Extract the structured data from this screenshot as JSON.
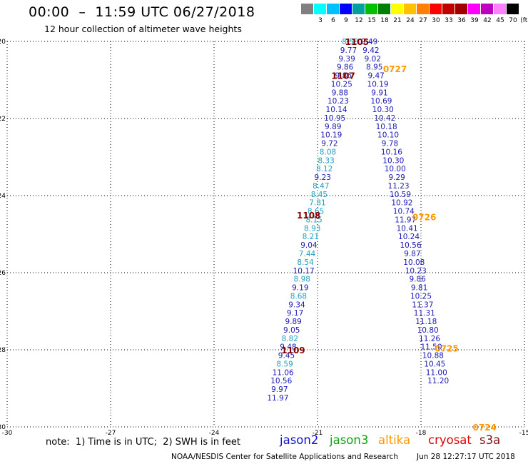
{
  "title": "00:00  –  11:59 UTC 06/27/2018",
  "subtitle": "12 hour collection of altimeter wave heights",
  "legend": {
    "unit_label": "(ft)",
    "bins": [
      {
        "label": "",
        "color": "#808080"
      },
      {
        "label": "3",
        "color": "#00ffff"
      },
      {
        "label": "6",
        "color": "#00c0ff"
      },
      {
        "label": "9",
        "color": "#0000ff"
      },
      {
        "label": "12",
        "color": "#00a0a0"
      },
      {
        "label": "15",
        "color": "#00c000"
      },
      {
        "label": "18",
        "color": "#008000"
      },
      {
        "label": "21",
        "color": "#ffff00"
      },
      {
        "label": "24",
        "color": "#ffc000"
      },
      {
        "label": "27",
        "color": "#ff8000"
      },
      {
        "label": "30",
        "color": "#ff0000"
      },
      {
        "label": "33",
        "color": "#c00000"
      },
      {
        "label": "36",
        "color": "#a00000"
      },
      {
        "label": "39",
        "color": "#ff00ff"
      },
      {
        "label": "42",
        "color": "#c000c0"
      },
      {
        "label": "45",
        "color": "#ff80ff"
      },
      {
        "label": "70",
        "color": "#000000"
      }
    ]
  },
  "note": "note:  1) Time is in UTC;  2) SWH is in feet",
  "satellites": [
    {
      "name": "jason2",
      "color": "#1010d0"
    },
    {
      "name": "jason3",
      "color": "#10a010"
    },
    {
      "name": "altika",
      "color": "#ff9900"
    },
    {
      "name": "cryosat",
      "color": "#e00000"
    },
    {
      "name": "s3a",
      "color": "#801010"
    }
  ],
  "footer": "NOAA/NESDIS Center for Satellite Applications and Research",
  "footer_date": "Jun 28 12:27:17 UTC 2018",
  "chart_data": {
    "type": "scatter",
    "title": "00:00 – 11:59 UTC 06/27/2018",
    "xlim": [
      -30,
      -15
    ],
    "ylim": [
      -30,
      -20
    ],
    "x_ticks": [
      -30,
      -27,
      -24,
      -21,
      -18,
      -15
    ],
    "y_ticks": [
      -20,
      -22,
      -24,
      -26,
      -28,
      -30
    ],
    "grid": true,
    "tracks": [
      {
        "satellite": "jason2",
        "color": "#1a1ab4",
        "points": [
          {
            "x": -20.05,
            "y": -20.0,
            "v": "8.58",
            "c": "#20a0c0"
          },
          {
            "x": -20.1,
            "y": -20.22,
            "v": "9.77"
          },
          {
            "x": -20.15,
            "y": -20.44,
            "v": "9.39"
          },
          {
            "x": -20.2,
            "y": -20.66,
            "v": "9.86"
          },
          {
            "x": -20.25,
            "y": -20.88,
            "v": "9.86"
          },
          {
            "x": -20.3,
            "y": -21.1,
            "v": "10.25"
          },
          {
            "x": -20.35,
            "y": -21.32,
            "v": "9.88"
          },
          {
            "x": -20.4,
            "y": -21.54,
            "v": "10.23"
          },
          {
            "x": -20.45,
            "y": -21.76,
            "v": "10.14"
          },
          {
            "x": -20.5,
            "y": -21.98,
            "v": "10.95"
          },
          {
            "x": -20.55,
            "y": -22.2,
            "v": "9.89"
          },
          {
            "x": -20.6,
            "y": -22.42,
            "v": "10.19"
          },
          {
            "x": -20.65,
            "y": -22.64,
            "v": "9.72"
          },
          {
            "x": -20.7,
            "y": -22.86,
            "v": "8.08",
            "c": "#20a0c0"
          },
          {
            "x": -20.75,
            "y": -23.08,
            "v": "8.33",
            "c": "#20a0c0"
          },
          {
            "x": -20.8,
            "y": -23.3,
            "v": "8.12",
            "c": "#20a0c0"
          },
          {
            "x": -20.85,
            "y": -23.52,
            "v": "9.23"
          },
          {
            "x": -20.9,
            "y": -23.74,
            "v": "8.47",
            "c": "#20a0c0"
          },
          {
            "x": -20.95,
            "y": -23.96,
            "v": "8.45",
            "c": "#20a0c0"
          },
          {
            "x": -21.0,
            "y": -24.18,
            "v": "7.81",
            "c": "#20a0c0"
          },
          {
            "x": -21.05,
            "y": -24.4,
            "v": "8.65",
            "c": "#20a0c0"
          },
          {
            "x": -21.1,
            "y": -24.62,
            "v": "8.15",
            "c": "#20a0c0"
          },
          {
            "x": -21.15,
            "y": -24.84,
            "v": "8.93",
            "c": "#20a0c0"
          },
          {
            "x": -21.2,
            "y": -25.06,
            "v": "8.21",
            "c": "#20a0c0"
          },
          {
            "x": -21.25,
            "y": -25.28,
            "v": "9.04"
          },
          {
            "x": -21.3,
            "y": -25.5,
            "v": "7.44",
            "c": "#20a0c0"
          },
          {
            "x": -21.35,
            "y": -25.72,
            "v": "8.54",
            "c": "#20a0c0"
          },
          {
            "x": -21.4,
            "y": -25.94,
            "v": "10.17"
          },
          {
            "x": -21.45,
            "y": -26.16,
            "v": "8.98",
            "c": "#20a0c0"
          },
          {
            "x": -21.5,
            "y": -26.38,
            "v": "9.19"
          },
          {
            "x": -21.55,
            "y": -26.6,
            "v": "8.68",
            "c": "#20a0c0"
          },
          {
            "x": -21.6,
            "y": -26.82,
            "v": "9.34"
          },
          {
            "x": -21.65,
            "y": -27.04,
            "v": "9.17"
          },
          {
            "x": -21.7,
            "y": -27.26,
            "v": "9.89"
          },
          {
            "x": -21.75,
            "y": -27.48,
            "v": "9.05"
          },
          {
            "x": -21.8,
            "y": -27.7,
            "v": "8.82",
            "c": "#20a0c0"
          },
          {
            "x": -21.85,
            "y": -27.92,
            "v": "9.48"
          },
          {
            "x": -21.9,
            "y": -28.14,
            "v": "9.45"
          },
          {
            "x": -21.95,
            "y": -28.36,
            "v": "8.59",
            "c": "#20a0c0"
          },
          {
            "x": -22.0,
            "y": -28.58,
            "v": "11.06"
          },
          {
            "x": -22.05,
            "y": -28.8,
            "v": "10.56"
          },
          {
            "x": -22.1,
            "y": -29.02,
            "v": "9.97"
          },
          {
            "x": -22.15,
            "y": -29.24,
            "v": "11.97"
          }
        ]
      },
      {
        "satellite": "jason2",
        "color": "#1a1ab4",
        "points": [
          {
            "x": -19.5,
            "y": -20.0,
            "v": "9.49"
          },
          {
            "x": -19.45,
            "y": -20.22,
            "v": "9.42"
          },
          {
            "x": -19.4,
            "y": -20.44,
            "v": "9.02"
          },
          {
            "x": -19.35,
            "y": -20.66,
            "v": "8.95"
          },
          {
            "x": -19.3,
            "y": -20.88,
            "v": "9.47"
          },
          {
            "x": -19.25,
            "y": -21.1,
            "v": "10.19"
          },
          {
            "x": -19.2,
            "y": -21.32,
            "v": "9.91"
          },
          {
            "x": -19.15,
            "y": -21.54,
            "v": "10.69"
          },
          {
            "x": -19.1,
            "y": -21.76,
            "v": "10.30"
          },
          {
            "x": -19.05,
            "y": -21.98,
            "v": "10.42"
          },
          {
            "x": -19.0,
            "y": -22.2,
            "v": "10.18"
          },
          {
            "x": -18.95,
            "y": -22.42,
            "v": "10.10"
          },
          {
            "x": -18.9,
            "y": -22.64,
            "v": "9.78"
          },
          {
            "x": -18.85,
            "y": -22.86,
            "v": "10.16"
          },
          {
            "x": -18.8,
            "y": -23.08,
            "v": "10.30"
          },
          {
            "x": -18.75,
            "y": -23.3,
            "v": "10.00"
          },
          {
            "x": -18.7,
            "y": -23.52,
            "v": "9.29"
          },
          {
            "x": -18.65,
            "y": -23.74,
            "v": "11.23"
          },
          {
            "x": -18.6,
            "y": -23.96,
            "v": "10.59"
          },
          {
            "x": -18.55,
            "y": -24.18,
            "v": "10.92"
          },
          {
            "x": -18.5,
            "y": -24.4,
            "v": "10.74"
          },
          {
            "x": -18.45,
            "y": -24.62,
            "v": "11.97"
          },
          {
            "x": -18.4,
            "y": -24.84,
            "v": "10.41"
          },
          {
            "x": -18.35,
            "y": -25.06,
            "v": "10.24"
          },
          {
            "x": -18.3,
            "y": -25.28,
            "v": "10.56"
          },
          {
            "x": -18.25,
            "y": -25.5,
            "v": "9.87"
          },
          {
            "x": -18.2,
            "y": -25.72,
            "v": "10.08"
          },
          {
            "x": -18.15,
            "y": -25.94,
            "v": "10.23"
          },
          {
            "x": -18.1,
            "y": -26.16,
            "v": "9.86"
          },
          {
            "x": -18.05,
            "y": -26.38,
            "v": "9.81"
          },
          {
            "x": -18.0,
            "y": -26.6,
            "v": "10.25"
          },
          {
            "x": -17.95,
            "y": -26.82,
            "v": "11.37"
          },
          {
            "x": -17.9,
            "y": -27.04,
            "v": "11.31"
          },
          {
            "x": -17.85,
            "y": -27.26,
            "v": "11.18"
          },
          {
            "x": -17.8,
            "y": -27.48,
            "v": "10.80"
          },
          {
            "x": -17.75,
            "y": -27.7,
            "v": "11.26"
          },
          {
            "x": -17.7,
            "y": -27.92,
            "v": "11.50"
          },
          {
            "x": -17.65,
            "y": -28.14,
            "v": "10.88"
          },
          {
            "x": -17.6,
            "y": -28.36,
            "v": "10.45"
          },
          {
            "x": -17.55,
            "y": -28.58,
            "v": "11.00"
          },
          {
            "x": -17.5,
            "y": -28.8,
            "v": "11.20"
          }
        ]
      }
    ],
    "time_labels": [
      {
        "text": "1105",
        "x": -20.2,
        "y": -20.0,
        "color": "#800000"
      },
      {
        "text": "1107",
        "x": -20.6,
        "y": -20.88,
        "color": "#800000"
      },
      {
        "text": "0727",
        "x": -19.1,
        "y": -20.7,
        "color": "#ff9900"
      },
      {
        "text": "1108",
        "x": -21.6,
        "y": -24.5,
        "color": "#800000"
      },
      {
        "text": "0726",
        "x": -18.25,
        "y": -24.55,
        "color": "#ff9900"
      },
      {
        "text": "1109",
        "x": -22.05,
        "y": -28.0,
        "color": "#800000"
      },
      {
        "text": "0725",
        "x": -17.6,
        "y": -27.95,
        "color": "#ff9900"
      },
      {
        "text": "0724",
        "x": -16.5,
        "y": -30.0,
        "color": "#ff9900"
      }
    ]
  }
}
